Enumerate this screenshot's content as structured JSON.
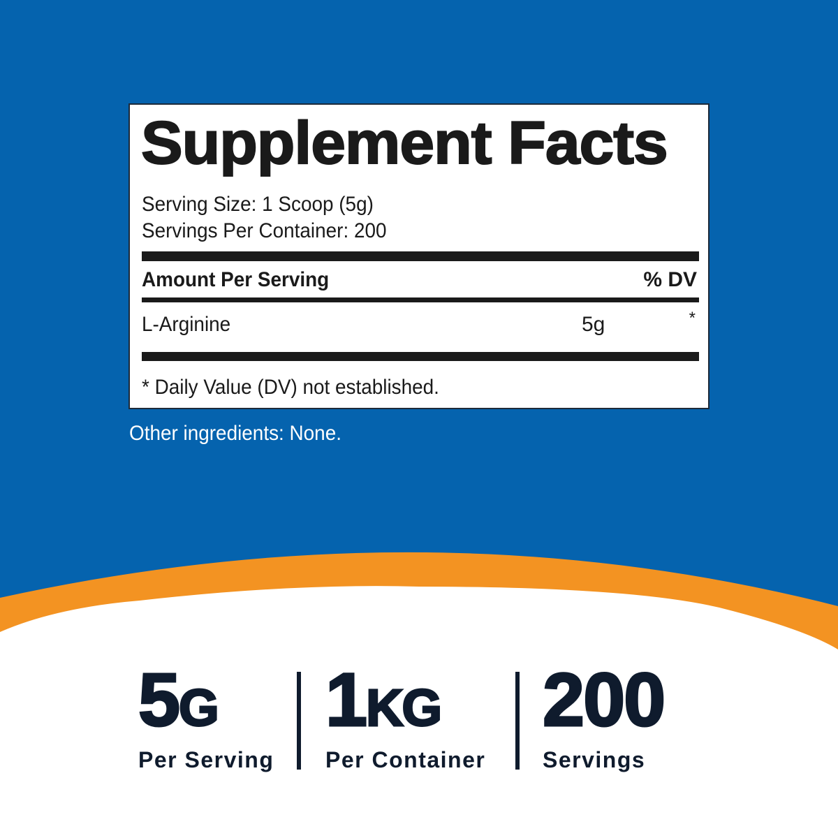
{
  "colors": {
    "background_blue": "#0563ae",
    "accent_orange": "#f39322",
    "text_dark": "#1a1a1a",
    "stat_navy": "#0f1b2d"
  },
  "facts": {
    "title": "Supplement Facts",
    "serving_size": "Serving Size: 1 Scoop (5g)",
    "servings_per_container": "Servings Per Container: 200",
    "header_amount": "Amount Per Serving",
    "header_dv": "% DV",
    "rows": [
      {
        "name": "L-Arginine",
        "amount": "5g",
        "dv": "*"
      }
    ],
    "footnote": "* Daily Value (DV) not established."
  },
  "other_ingredients": "Other ingredients: None.",
  "stats": [
    {
      "number": "5",
      "unit": "G",
      "label": "Per Serving"
    },
    {
      "number": "1",
      "unit": "KG",
      "label": "Per Container"
    },
    {
      "number": "200",
      "unit": "",
      "label": "Servings"
    }
  ]
}
